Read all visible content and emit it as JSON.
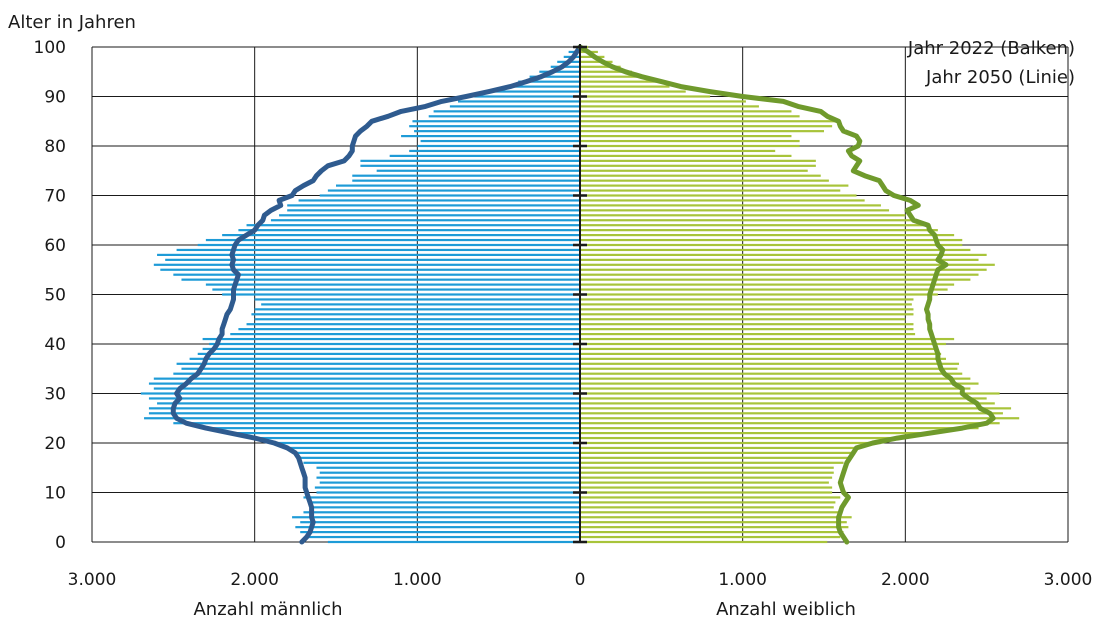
{
  "chart_data": {
    "type": "bar",
    "subtype": "population-pyramid",
    "title": "",
    "ylabel": "Alter in Jahren",
    "xlabel_left": "Anzahl männlich",
    "xlabel_right": "Anzahl weiblich",
    "legend": [
      "Jahr 2022 (Balken)",
      "Jahr 2050 (Linie)"
    ],
    "legend_position": "top-right",
    "grid": true,
    "x_range": [
      -3000,
      3000
    ],
    "y_range": [
      0,
      100
    ],
    "x_ticks": [
      -3000,
      -2000,
      -1000,
      0,
      1000,
      2000,
      3000
    ],
    "x_tick_labels": [
      "3.000",
      "2.000",
      "1.000",
      "0",
      "1.000",
      "2.000",
      "3.000"
    ],
    "y_ticks": [
      0,
      10,
      20,
      30,
      40,
      50,
      60,
      70,
      80,
      90,
      100
    ],
    "y_tick_labels": [
      "0",
      "10",
      "20",
      "30",
      "40",
      "50",
      "60",
      "70",
      "80",
      "90",
      "100"
    ],
    "colors": {
      "male_bars": "#1e9bd7",
      "female_bars": "#a8c43a",
      "male_line": "#2f5b8f",
      "female_line": "#6f9a2c",
      "grid": "#1a1a1a"
    },
    "ages": [
      0,
      1,
      2,
      3,
      4,
      5,
      6,
      7,
      8,
      9,
      10,
      11,
      12,
      13,
      14,
      15,
      16,
      17,
      18,
      19,
      20,
      21,
      22,
      23,
      24,
      25,
      26,
      27,
      28,
      29,
      30,
      31,
      32,
      33,
      34,
      35,
      36,
      37,
      38,
      39,
      40,
      41,
      42,
      43,
      44,
      45,
      46,
      47,
      48,
      49,
      50,
      51,
      52,
      53,
      54,
      55,
      56,
      57,
      58,
      59,
      60,
      61,
      62,
      63,
      64,
      65,
      66,
      67,
      68,
      69,
      70,
      71,
      72,
      73,
      74,
      75,
      76,
      77,
      78,
      79,
      80,
      81,
      82,
      83,
      84,
      85,
      86,
      87,
      88,
      89,
      90,
      91,
      92,
      93,
      94,
      95,
      96,
      97,
      98,
      99,
      100
    ],
    "series": [
      {
        "name": "Jahr 2022 (Balken)",
        "sex": "männlich",
        "values": [
          1550,
          1690,
          1720,
          1750,
          1720,
          1770,
          1700,
          1650,
          1670,
          1700,
          1620,
          1630,
          1600,
          1620,
          1600,
          1620,
          1700,
          1720,
          1750,
          1800,
          1880,
          1980,
          2150,
          2300,
          2500,
          2680,
          2650,
          2650,
          2600,
          2650,
          2700,
          2620,
          2650,
          2620,
          2500,
          2450,
          2480,
          2400,
          2350,
          2320,
          2280,
          2320,
          2150,
          2100,
          2050,
          2000,
          2020,
          2000,
          1960,
          2000,
          2200,
          2260,
          2300,
          2450,
          2500,
          2580,
          2620,
          2550,
          2600,
          2480,
          2350,
          2300,
          2200,
          2100,
          2050,
          1900,
          1850,
          1800,
          1800,
          1730,
          1600,
          1550,
          1500,
          1400,
          1400,
          1250,
          1350,
          1350,
          1170,
          1050,
          1000,
          980,
          1100,
          1020,
          1050,
          1030,
          930,
          900,
          800,
          750,
          650,
          550,
          460,
          380,
          310,
          250,
          180,
          140,
          100,
          70,
          20
        ]
      },
      {
        "name": "Jahr 2022 (Balken)",
        "sex": "weiblich",
        "values": [
          1520,
          1600,
          1620,
          1650,
          1640,
          1670,
          1600,
          1560,
          1570,
          1600,
          1550,
          1550,
          1530,
          1550,
          1560,
          1560,
          1620,
          1650,
          1680,
          1720,
          1850,
          2000,
          2200,
          2450,
          2580,
          2700,
          2600,
          2650,
          2550,
          2500,
          2580,
          2400,
          2450,
          2400,
          2350,
          2320,
          2330,
          2250,
          2220,
          2200,
          2250,
          2300,
          2060,
          2050,
          2050,
          2000,
          2050,
          2050,
          2040,
          2050,
          2200,
          2260,
          2300,
          2400,
          2450,
          2500,
          2550,
          2450,
          2500,
          2400,
          2350,
          2350,
          2300,
          2200,
          2150,
          2050,
          2000,
          1900,
          1850,
          1750,
          1700,
          1600,
          1650,
          1530,
          1480,
          1400,
          1450,
          1450,
          1300,
          1200,
          1350,
          1350,
          1300,
          1500,
          1550,
          1600,
          1350,
          1300,
          1100,
          1020,
          800,
          650,
          550,
          470,
          400,
          320,
          250,
          200,
          150,
          110,
          50
        ]
      },
      {
        "name": "Jahr 2050 (Linie)",
        "sex": "männlich",
        "values": [
          1710,
          1680,
          1660,
          1650,
          1640,
          1650,
          1650,
          1650,
          1660,
          1670,
          1680,
          1690,
          1690,
          1690,
          1700,
          1710,
          1720,
          1730,
          1750,
          1800,
          1880,
          2000,
          2150,
          2300,
          2420,
          2480,
          2500,
          2500,
          2490,
          2460,
          2480,
          2460,
          2420,
          2390,
          2350,
          2330,
          2310,
          2300,
          2280,
          2250,
          2230,
          2220,
          2200,
          2200,
          2190,
          2180,
          2170,
          2150,
          2140,
          2130,
          2130,
          2130,
          2120,
          2110,
          2100,
          2130,
          2140,
          2130,
          2140,
          2130,
          2120,
          2100,
          2050,
          2000,
          1980,
          1950,
          1940,
          1900,
          1840,
          1850,
          1770,
          1750,
          1700,
          1640,
          1620,
          1590,
          1550,
          1450,
          1420,
          1400,
          1400,
          1390,
          1380,
          1350,
          1310,
          1280,
          1180,
          1100,
          950,
          850,
          700,
          560,
          430,
          330,
          240,
          170,
          110,
          70,
          40,
          20,
          0
        ]
      },
      {
        "name": "Jahr 2050 (Linie)",
        "sex": "weiblich",
        "values": [
          1640,
          1620,
          1600,
          1590,
          1590,
          1590,
          1600,
          1610,
          1630,
          1650,
          1620,
          1610,
          1600,
          1610,
          1620,
          1630,
          1640,
          1660,
          1680,
          1700,
          1800,
          1950,
          2150,
          2350,
          2500,
          2540,
          2520,
          2460,
          2440,
          2390,
          2350,
          2350,
          2300,
          2280,
          2240,
          2220,
          2210,
          2200,
          2200,
          2190,
          2180,
          2170,
          2160,
          2150,
          2150,
          2140,
          2140,
          2130,
          2140,
          2150,
          2150,
          2160,
          2170,
          2180,
          2190,
          2200,
          2250,
          2200,
          2220,
          2230,
          2200,
          2190,
          2180,
          2150,
          2140,
          2050,
          2030,
          2010,
          2080,
          2030,
          1930,
          1880,
          1860,
          1840,
          1750,
          1680,
          1700,
          1720,
          1670,
          1650,
          1710,
          1720,
          1700,
          1620,
          1600,
          1590,
          1520,
          1480,
          1340,
          1250,
          1000,
          800,
          620,
          500,
          380,
          280,
          200,
          140,
          90,
          50,
          0
        ]
      }
    ]
  }
}
